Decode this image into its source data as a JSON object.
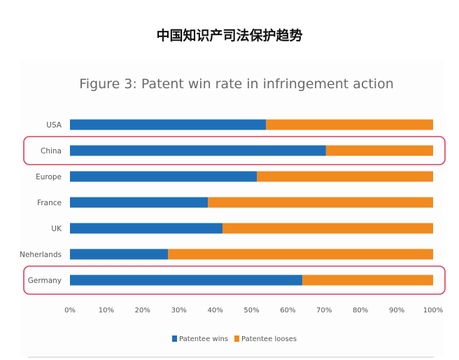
{
  "page": {
    "heading": "中国知识产司法保护趋势"
  },
  "colors": {
    "wins": "#1f6fb8",
    "looses": "#f18a1f",
    "highlight": "#d9405a",
    "text": "#555555",
    "title": "#6a6a6a"
  },
  "chart_data": {
    "type": "bar",
    "orientation": "horizontal",
    "stacked": true,
    "title": "Figure 3: Patent win rate in infringement action",
    "categories": [
      "USA",
      "China",
      "Europe",
      "France",
      "UK",
      "Neherlands",
      "Germany"
    ],
    "series": [
      {
        "name": "Patentee wins",
        "values": [
          54,
          70.5,
          51.5,
          38,
          42,
          27,
          64
        ]
      },
      {
        "name": "Patentee looses",
        "values": [
          46,
          29.5,
          48.5,
          62,
          58,
          73,
          36
        ]
      }
    ],
    "xlim": [
      0,
      100
    ],
    "x_ticks": [
      "0%",
      "10%",
      "20%",
      "30%",
      "40%",
      "50%",
      "60%",
      "70%",
      "80%",
      "90%",
      "100%"
    ],
    "highlighted_categories": [
      "China",
      "Germany"
    ],
    "legend_position": "bottom",
    "grid": false
  }
}
